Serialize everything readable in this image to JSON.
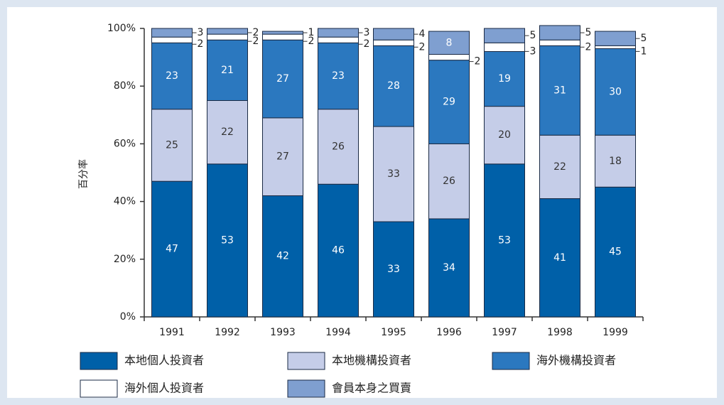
{
  "chart_data": {
    "type": "stacked_bar_percent",
    "y_label": "百分率",
    "categories": [
      "1991",
      "1992",
      "1993",
      "1994",
      "1995",
      "1996",
      "1997",
      "1998",
      "1999"
    ],
    "series": [
      {
        "name": "本地個人投資者",
        "color": "#0060a8",
        "values": [
          47,
          53,
          42,
          46,
          33,
          34,
          53,
          41,
          45
        ]
      },
      {
        "name": "本地機構投資者",
        "color": "#c5cde8",
        "values": [
          25,
          22,
          27,
          26,
          33,
          26,
          20,
          22,
          18
        ]
      },
      {
        "name": "海外機構投資者",
        "color": "#2b78bf",
        "values": [
          23,
          21,
          27,
          23,
          28,
          29,
          19,
          31,
          30
        ]
      },
      {
        "name": "海外個人投資者",
        "color": "#ffffff",
        "values": [
          2,
          2,
          2,
          2,
          2,
          2,
          3,
          2,
          1
        ]
      },
      {
        "name": "會員本身之買賣",
        "color": "#7f9fd0",
        "values": [
          3,
          2,
          1,
          3,
          4,
          8,
          5,
          5,
          5
        ]
      }
    ],
    "ylim": [
      0,
      100
    ],
    "yticks": [
      {
        "value": 0,
        "label": "0%"
      },
      {
        "value": 20,
        "label": "20%"
      },
      {
        "value": 40,
        "label": "40%"
      },
      {
        "value": 60,
        "label": "60%"
      },
      {
        "value": 80,
        "label": "80%"
      },
      {
        "value": 100,
        "label": "100%"
      }
    ]
  }
}
